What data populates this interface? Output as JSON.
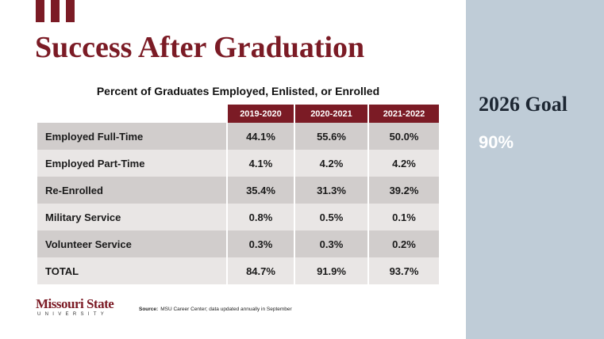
{
  "header": {
    "title": "Success After Graduation"
  },
  "table": {
    "caption": "Percent of Graduates Employed, Enlisted, or Enrolled",
    "columns": [
      "2019-2020",
      "2020-2021",
      "2021-2022"
    ],
    "rows": [
      [
        "Employed Full-Time",
        "44.1%",
        "55.6%",
        "50.0%"
      ],
      [
        "Employed Part-Time",
        "4.1%",
        "4.2%",
        "4.2%"
      ],
      [
        "Re-Enrolled",
        "35.4%",
        "31.3%",
        "39.2%"
      ],
      [
        "Military Service",
        "0.8%",
        "0.5%",
        "0.1%"
      ],
      [
        "Volunteer Service",
        "0.3%",
        "0.3%",
        "0.2%"
      ],
      [
        "TOTAL",
        "84.7%",
        "91.9%",
        "93.7%"
      ]
    ]
  },
  "goal": {
    "title": "2026 Goal",
    "value": "90%"
  },
  "footer": {
    "logo": "Missouri State",
    "logo_sub": "UNIVERSITY",
    "source_label": "Source:",
    "source": "MSU Career Center; data updated annually in September"
  }
}
